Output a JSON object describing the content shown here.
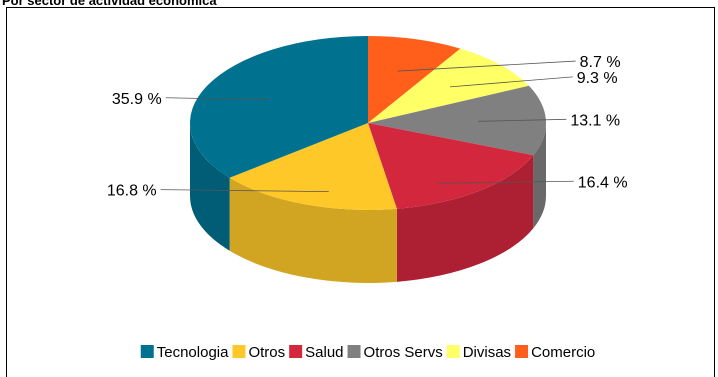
{
  "title": "Por sector de actividad económica",
  "chart_data": {
    "type": "pie",
    "style": "3d",
    "legend_position": "bottom",
    "slices": [
      {
        "name": "Comercio",
        "value": 8.7,
        "label": "8.7 %",
        "color": "#ff5f1a"
      },
      {
        "name": "Divisas",
        "value": 9.3,
        "label": "9.3 %",
        "color": "#ffff66"
      },
      {
        "name": "Otros Servs",
        "value": 13.1,
        "label": "13.1 %",
        "color": "#808080"
      },
      {
        "name": "Salud",
        "value": 16.4,
        "label": "16.4 %",
        "color": "#d3273e"
      },
      {
        "name": "Otros",
        "value": 16.8,
        "label": "16.8 %",
        "color": "#ffc829"
      },
      {
        "name": "Tecnologia",
        "value": 35.9,
        "label": "35.9 %",
        "color": "#00728f"
      }
    ],
    "legend": [
      "Tecnologia",
      "Otros",
      "Salud",
      "Otros Servs",
      "Divisas",
      "Comercio"
    ]
  }
}
